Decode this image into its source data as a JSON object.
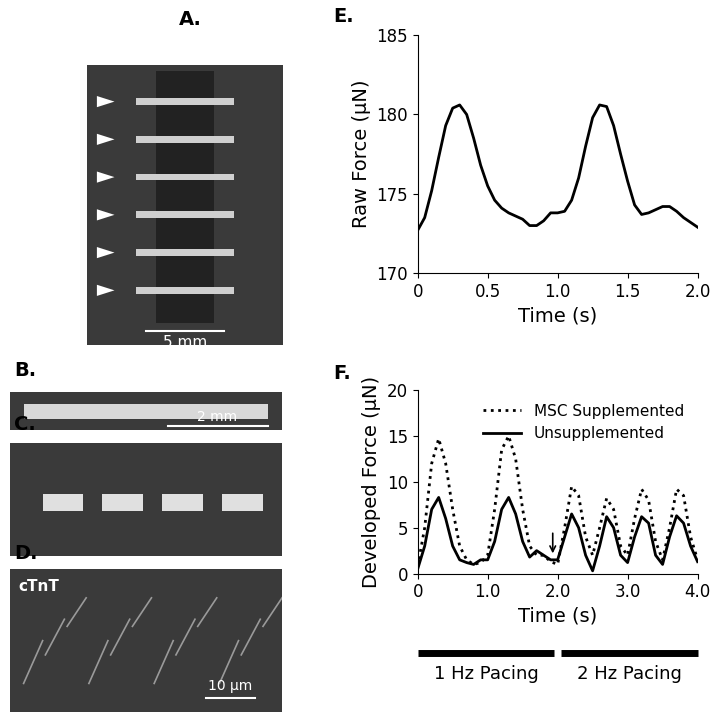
{
  "chart_data": [
    {
      "type": "line",
      "title": "E.",
      "x_label": "Time (s)",
      "y_label": "Raw Force (μN)",
      "x": [
        0,
        0.05,
        0.1,
        0.15,
        0.2,
        0.25,
        0.3,
        0.35,
        0.4,
        0.45,
        0.5,
        0.55,
        0.6,
        0.65,
        0.7,
        0.75,
        0.8,
        0.85,
        0.9,
        0.95,
        1.0,
        1.05,
        1.1,
        1.15,
        1.2,
        1.25,
        1.3,
        1.35,
        1.4,
        1.45,
        1.5,
        1.55,
        1.6,
        1.65,
        1.7,
        1.75,
        1.8,
        1.85,
        1.9,
        1.95,
        2.0
      ],
      "values": [
        172.7,
        173.5,
        175.2,
        177.3,
        179.3,
        180.4,
        180.6,
        180.0,
        178.5,
        176.8,
        175.5,
        174.6,
        174.1,
        173.8,
        173.6,
        173.4,
        173.0,
        173.0,
        173.3,
        173.8,
        173.8,
        173.9,
        174.6,
        176.0,
        178.0,
        179.8,
        180.6,
        180.5,
        179.3,
        177.5,
        175.8,
        174.3,
        173.7,
        173.8,
        174.0,
        174.2,
        174.2,
        173.9,
        173.5,
        173.2,
        172.9
      ],
      "color": "#000000",
      "line_style": "solid",
      "xlim": [
        0,
        2
      ],
      "xticks": [
        0,
        0.5,
        {
          "value": 1,
          "label": "1.0"
        },
        1.5,
        {
          "value": 2,
          "label": "2.0"
        }
      ],
      "ylim": [
        170,
        185
      ],
      "yticks": [
        170,
        175,
        180,
        185
      ]
    },
    {
      "type": "line",
      "title": "F.",
      "x_label": "Time (s)",
      "y_label": "Developed Force (μN)",
      "x": [
        0,
        0.1,
        0.2,
        0.3,
        0.4,
        0.5,
        0.6,
        0.7,
        0.8,
        0.9,
        1.0,
        1.1,
        1.2,
        1.3,
        1.4,
        1.5,
        1.6,
        1.7,
        1.8,
        1.9,
        2.0,
        2.1,
        2.2,
        2.3,
        2.4,
        2.5,
        2.6,
        2.7,
        2.8,
        2.9,
        3.0,
        3.1,
        3.2,
        3.3,
        3.4,
        3.5,
        3.6,
        3.7,
        3.8,
        3.9,
        4.0
      ],
      "series": [
        {
          "name": "MSC Supplemented",
          "color": "#000000",
          "line_style": "dotted",
          "values": [
            0.8,
            5,
            12,
            14.7,
            12,
            7,
            3,
            1.5,
            1,
            1.2,
            2,
            7,
            13.5,
            15,
            12.5,
            7,
            3,
            2,
            2,
            1.3,
            1,
            5,
            9.5,
            8.5,
            4,
            2,
            5,
            8.2,
            7,
            3,
            2,
            6,
            9.2,
            8,
            3.5,
            1.5,
            5,
            9.2,
            8.5,
            4,
            1.5
          ]
        },
        {
          "name": "Unsupplemented",
          "color": "#000000",
          "line_style": "solid",
          "values": [
            0.5,
            3,
            7,
            8.3,
            6,
            3,
            1.5,
            1.2,
            1,
            1.5,
            1.5,
            3.5,
            7,
            8.3,
            6.5,
            3.5,
            1.8,
            2.5,
            2,
            1.5,
            1.5,
            4,
            6.5,
            5,
            2,
            0.3,
            3,
            6.2,
            5,
            2,
            1.2,
            4,
            6.2,
            5.5,
            2,
            1,
            4,
            6.3,
            5.5,
            3,
            1.3
          ]
        }
      ],
      "legend": "upper right",
      "xlim": [
        0,
        4
      ],
      "xticks": [
        0,
        {
          "value": 1,
          "label": "1.0"
        },
        {
          "value": 2,
          "label": "2.0"
        },
        {
          "value": 3,
          "label": "3.0"
        },
        {
          "value": 4,
          "label": "4.0"
        }
      ],
      "ylim": [
        0,
        20
      ],
      "yticks": [
        0,
        5,
        10,
        15,
        20
      ],
      "arrow": {
        "x": 1.93,
        "y_from": 4.7,
        "y_to": 1.9
      },
      "annotations": [
        {
          "text": "1 Hz Pacing",
          "x_start": 0,
          "x_end": 1.95
        },
        {
          "text": "2 Hz Pacing",
          "x_start": 2.05,
          "x_end": 4.0
        }
      ]
    }
  ],
  "images": [
    {
      "panel": "A.",
      "scale_bar": "5 mm"
    },
    {
      "panel": "B.",
      "scale_bar": "2 mm"
    },
    {
      "panel": "C."
    },
    {
      "panel": "D.",
      "label": "cTnT",
      "scale_bar": "10 μm"
    }
  ]
}
